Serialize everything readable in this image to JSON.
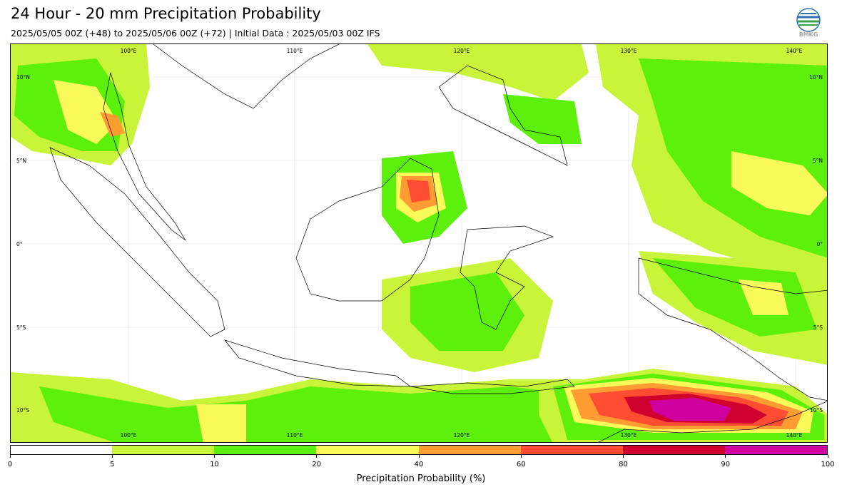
{
  "header": {
    "title": "24 Hour - 20 mm Precipitation Probability",
    "subtitle": "2025/05/05 00Z (+48) to 2025/05/06 00Z (+72) | Initial Data : 2025/05/03 00Z IFS"
  },
  "logo": {
    "text": "BMKG",
    "icon": "bmkg-globe-logo"
  },
  "map": {
    "longitude_labels_top": [
      "100°E",
      "110°E",
      "120°E",
      "130°E",
      "140°E"
    ],
    "longitude_labels_bottom": [
      "100°E",
      "110°E",
      "120°E",
      "130°E",
      "140°E"
    ],
    "latitude_labels_left": [
      "10°N",
      "5°N",
      "0°",
      "5°S",
      "10°S"
    ],
    "latitude_labels_right": [
      "10°N",
      "5°N",
      "0°",
      "5°S",
      "10°S"
    ],
    "extent": {
      "lon_min": 93,
      "lon_max": 142,
      "lat_min": -12,
      "lat_max": 12
    }
  },
  "colorbar": {
    "label": "Precipitation Probability (%)",
    "ticks": [
      "0",
      "5",
      "10",
      "20",
      "40",
      "60",
      "80",
      "90",
      "100"
    ],
    "colors": [
      "#ffffff",
      "#c8f53a",
      "#5cf00c",
      "#fafa5a",
      "#ff9c32",
      "#ff4d33",
      "#d0002e",
      "#d000a0"
    ]
  }
}
